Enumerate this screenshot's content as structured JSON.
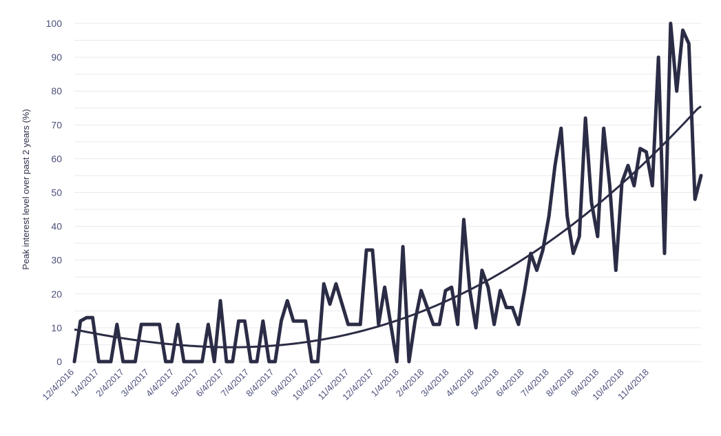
{
  "chart_data": {
    "type": "line",
    "title": "",
    "xlabel": "",
    "ylabel": "Peak interest level over past 2 years (%)",
    "ylim": [
      0,
      100
    ],
    "yticks": [
      "0",
      "10",
      "20",
      "30",
      "40",
      "50",
      "60",
      "70",
      "80",
      "90",
      "100"
    ],
    "xticks": [
      "12/4/2016",
      "1/4/2017",
      "2/4/2017",
      "3/4/2017",
      "4/4/2017",
      "5/4/2017",
      "6/4/2017",
      "7/4/2017",
      "8/4/2017",
      "9/4/2017",
      "10/4/2017",
      "11/4/2017",
      "12/4/2017",
      "1/4/2018",
      "2/4/2018",
      "3/4/2018",
      "4/4/2018",
      "5/4/2018",
      "6/4/2018",
      "7/4/2018",
      "8/4/2018",
      "9/4/2018",
      "10/4/2018",
      "11/4/2018"
    ],
    "grid": true,
    "legend": "none",
    "colors": {
      "line": "#2b2c45",
      "trend": "#2b2c45",
      "tick_text": "#4a4e7a",
      "grid": "#e9e9ee"
    },
    "series": [
      {
        "values": [
          0,
          12,
          13,
          13,
          0,
          0,
          0,
          11,
          0,
          0,
          0,
          11,
          11,
          11,
          11,
          0,
          0,
          11,
          0,
          0,
          0,
          0,
          11,
          0,
          18,
          0,
          0,
          12,
          12,
          0,
          0,
          12,
          0,
          0,
          12,
          18,
          12,
          12,
          12,
          0,
          0,
          23,
          17,
          23,
          17,
          11,
          11,
          11,
          33,
          33,
          11,
          22,
          11,
          0,
          34,
          0,
          12,
          21,
          16,
          11,
          11,
          21,
          22,
          11,
          42,
          21,
          10,
          27,
          22,
          11,
          21,
          16,
          16,
          11,
          21,
          32,
          27,
          33,
          43,
          58,
          69,
          43,
          32,
          37,
          72,
          47,
          37,
          69,
          52,
          27,
          53,
          58,
          52,
          63,
          62,
          52,
          90,
          32,
          100,
          80,
          98,
          94,
          48,
          55
        ]
      },
      {
        "type": "trend",
        "values": [
          9.5,
          9.28,
          9.06,
          8.84,
          8.63,
          8.42,
          8.22,
          8.02,
          7.82,
          7.63,
          7.44,
          7.26,
          7.08,
          6.91,
          6.74,
          6.58,
          6.42,
          6.26,
          6.11,
          5.97,
          5.83,
          5.7,
          5.57,
          5.45,
          5.33,
          5.22,
          5.11,
          5.01,
          4.92,
          4.83,
          4.75,
          4.67,
          4.6,
          4.54,
          4.48,
          4.43,
          4.38,
          4.34,
          4.31,
          4.28,
          4.26,
          4.25,
          4.24,
          4.25,
          4.26,
          4.28,
          4.3,
          4.33,
          4.37,
          4.42,
          4.48,
          4.54,
          4.61,
          4.69,
          4.78,
          4.87,
          4.97,
          5.08,
          5.2,
          5.33,
          5.46,
          5.6,
          5.75,
          5.91,
          6.08,
          6.26,
          6.44,
          6.63,
          6.84,
          7.05,
          7.26,
          7.49,
          7.73,
          7.97,
          8.23,
          8.49,
          8.76,
          9.04,
          9.33,
          9.63,
          9.93,
          10.25,
          10.58,
          10.91,
          11.26,
          11.61,
          11.97,
          12.35,
          12.73,
          13.12,
          13.52,
          13.93,
          14.35,
          14.77,
          15.21,
          15.66,
          16.12,
          16.58,
          17.06,
          17.55,
          18.04,
          18.55,
          19.06,
          19.59,
          20.13,
          20.67,
          21.23,
          21.79,
          22.37,
          22.95,
          23.55,
          24.15,
          24.77,
          25.39,
          26.03,
          26.68,
          27.33,
          28.0,
          28.68,
          29.36,
          30.06,
          30.77,
          31.49,
          32.21,
          32.95,
          33.7,
          34.46,
          35.23,
          36.01,
          36.8,
          37.6,
          38.41,
          39.23,
          40.06,
          40.91,
          41.76,
          42.62,
          43.5,
          44.38,
          45.27,
          46.18,
          47.1,
          48.02,
          48.96,
          49.91,
          50.87,
          51.84,
          52.82,
          53.81,
          54.81,
          55.83,
          56.85,
          57.88,
          58.93,
          59.98,
          61.05,
          62.13,
          63.21,
          64.31,
          65.42,
          66.54,
          67.67,
          68.81,
          69.96,
          71.12,
          72.3,
          73.48,
          74.67,
          75.5
        ]
      }
    ]
  }
}
